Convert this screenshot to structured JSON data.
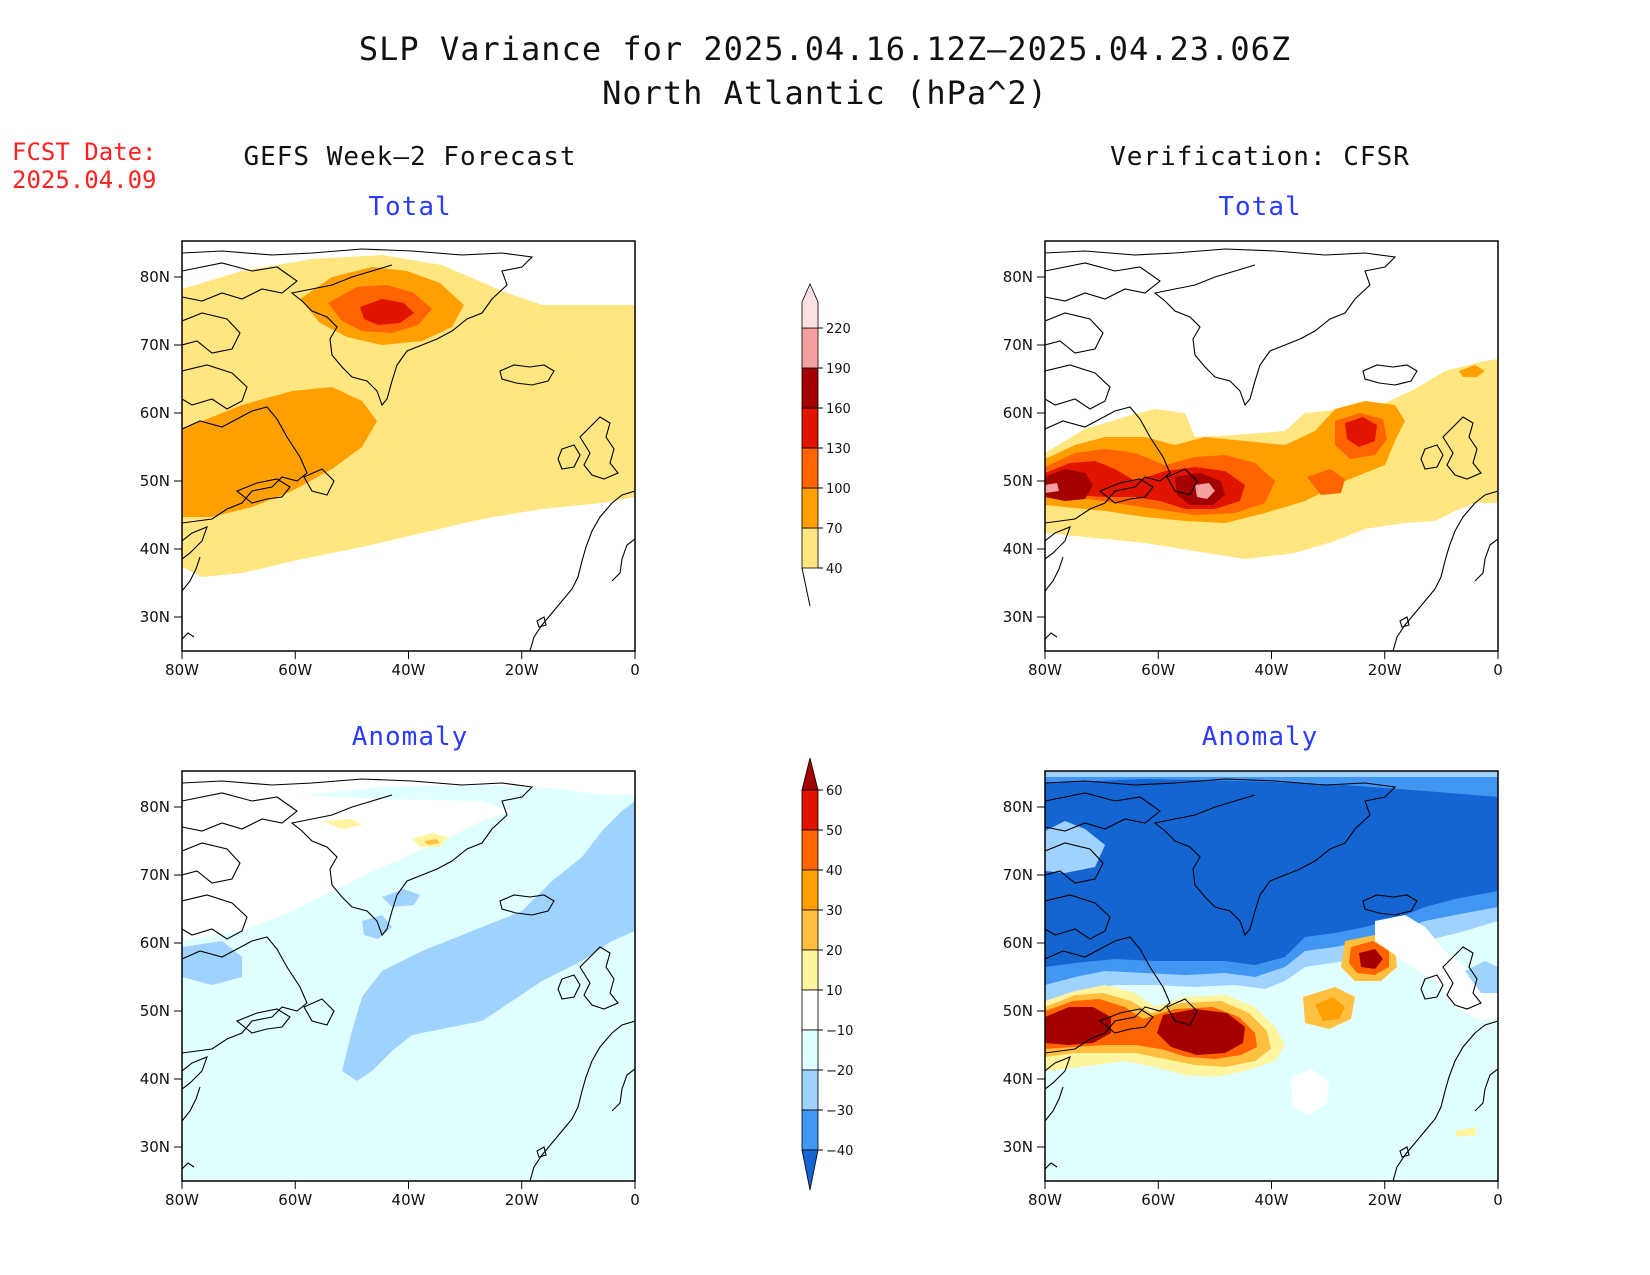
{
  "title": {
    "line1": "SLP Variance for 2025.04.16.12Z–2025.04.23.06Z",
    "line2": "North Atlantic (hPa^2)"
  },
  "fcst": {
    "label": "FCST Date:",
    "date": "2025.04.09"
  },
  "columns": {
    "left": "GEFS Week–2 Forecast",
    "right": "Verification: CFSR"
  },
  "panels": {
    "tl": "Total",
    "tr": "Total",
    "bl": "Anomaly",
    "br": "Anomaly"
  },
  "axes": {
    "lat_ticks": [
      "80N",
      "70N",
      "60N",
      "50N",
      "40N",
      "30N"
    ],
    "lon_ticks": [
      "80W",
      "60W",
      "40W",
      "20W",
      "0"
    ]
  },
  "colorbars": {
    "total": {
      "levels": [
        "40",
        "70",
        "100",
        "130",
        "160",
        "190",
        "220"
      ],
      "colors": [
        "#ffe680",
        "#ffa000",
        "#ff6400",
        "#e11400",
        "#a50000",
        "#f4a0a0",
        "#fde0e0"
      ]
    },
    "anomaly": {
      "levels": [
        "60",
        "50",
        "40",
        "30",
        "20",
        "10",
        "−10",
        "−20",
        "−30",
        "−40"
      ],
      "colors": [
        "#a50000",
        "#e11400",
        "#ff6400",
        "#ffa000",
        "#ffc040",
        "#fff5a0",
        "#ffffff",
        "#e0ffff",
        "#a0d2ff",
        "#4096f0",
        "#1464d2"
      ]
    }
  }
}
